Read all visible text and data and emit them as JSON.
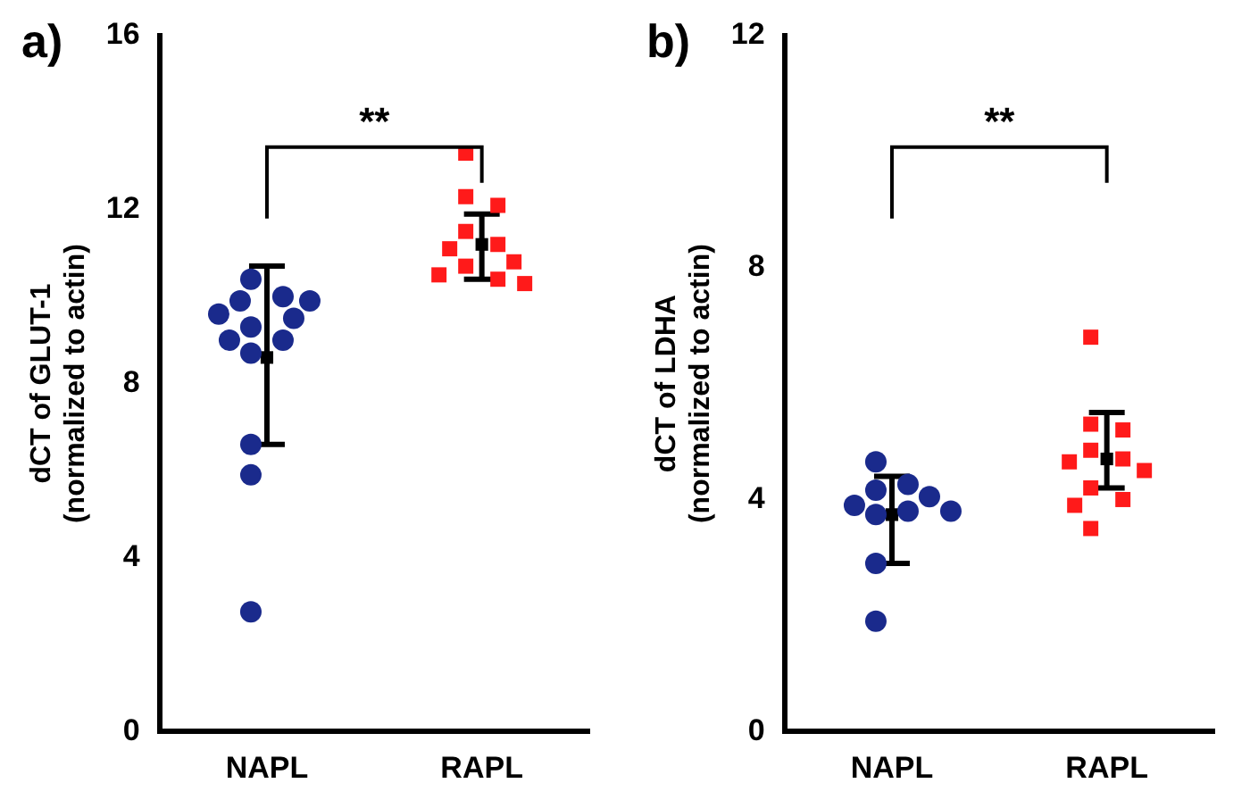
{
  "chart_data": [
    {
      "type": "scatter",
      "title": "a)",
      "ylabel": "dCT of GLUT-1\n(normalized to actin)",
      "categories": [
        "NAPL",
        "RAPL"
      ],
      "ylim": [
        0,
        16
      ],
      "yticks": [
        0,
        4,
        8,
        12,
        16
      ],
      "grid": false,
      "legend": false,
      "annotations": [
        "**"
      ],
      "series": [
        {
          "color": "#1a2a8c",
          "marker": "circle",
          "x": [
            "NAPL",
            "NAPL",
            "NAPL",
            "NAPL",
            "NAPL",
            "NAPL",
            "NAPL",
            "NAPL",
            "NAPL",
            "NAPL",
            "NAPL",
            "NAPL",
            "NAPL"
          ],
          "values": [
            10.4,
            10.0,
            9.9,
            9.9,
            9.6,
            9.5,
            9.3,
            9.0,
            9.0,
            8.7,
            6.6,
            5.9,
            2.75
          ]
        },
        {
          "color": "#ff1a1a",
          "marker": "square",
          "x": [
            "RAPL",
            "RAPL",
            "RAPL",
            "RAPL",
            "RAPL",
            "RAPL",
            "RAPL",
            "RAPL",
            "RAPL",
            "RAPL",
            "RAPL"
          ],
          "values": [
            13.3,
            12.3,
            12.1,
            11.5,
            11.2,
            11.1,
            10.8,
            10.7,
            10.5,
            10.4,
            10.3
          ]
        },
        {
          "color": "#000000",
          "marker": "square",
          "x": [
            "NAPL",
            "RAPL"
          ],
          "values": [
            8.6,
            11.2
          ],
          "errors": [
            [
              6.6,
              10.7
            ],
            [
              10.4,
              11.9
            ]
          ]
        }
      ]
    },
    {
      "type": "scatter",
      "title": "b)",
      "ylabel": "dCT of LDHA\n(normalized to actin)",
      "categories": [
        "NAPL",
        "RAPL"
      ],
      "ylim": [
        0,
        12
      ],
      "yticks": [
        0,
        4,
        8,
        12
      ],
      "grid": false,
      "legend": false,
      "annotations": [
        "**"
      ],
      "series": [
        {
          "color": "#1a2a8c",
          "marker": "circle",
          "x": [
            "NAPL",
            "NAPL",
            "NAPL",
            "NAPL",
            "NAPL",
            "NAPL",
            "NAPL",
            "NAPL",
            "NAPL",
            "NAPL"
          ],
          "values": [
            4.65,
            4.26,
            4.16,
            4.05,
            3.9,
            3.8,
            3.8,
            3.74,
            2.9,
            1.9
          ]
        },
        {
          "color": "#ff1a1a",
          "marker": "square",
          "x": [
            "RAPL",
            "RAPL",
            "RAPL",
            "RAPL",
            "RAPL",
            "RAPL",
            "RAPL",
            "RAPL",
            "RAPL",
            "RAPL",
            "RAPL"
          ],
          "values": [
            6.8,
            5.3,
            5.2,
            4.85,
            4.7,
            4.65,
            4.5,
            4.2,
            4.0,
            3.9,
            3.5
          ]
        },
        {
          "color": "#000000",
          "marker": "square",
          "x": [
            "NAPL",
            "RAPL"
          ],
          "values": [
            3.74,
            4.7
          ],
          "errors": [
            [
              2.9,
              4.4
            ],
            [
              4.2,
              5.5
            ]
          ]
        }
      ]
    }
  ]
}
